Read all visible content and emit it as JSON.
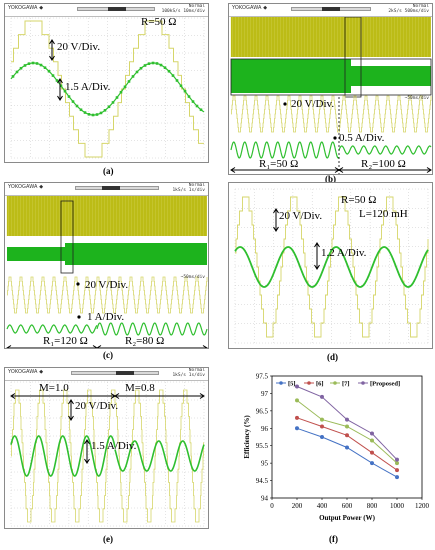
{
  "scope": {
    "brand": "YOKOGAWA ◆",
    "status_normal": "Normal"
  },
  "a": {
    "label": "(a)",
    "status_rate": "100kS/s",
    "status_div": "10ms/div",
    "resistance": "R=50 Ω",
    "v_div": "20 V/Div.",
    "i_div": "1.5 A/Div."
  },
  "b": {
    "label": "(b)",
    "status_rate": "2kS/s",
    "status_div": "500ms/div",
    "v_div": "20 V/Div.",
    "i_div": "0.5 A/Div.",
    "r1": "R₁=50 Ω",
    "r2": "R₂=100 Ω",
    "zoom": "~50ms/div"
  },
  "c": {
    "label": "(c)",
    "status_rate": "1kS/s",
    "status_div": "1s/div",
    "v_div": "20 V/Div.",
    "i_div": "1 A/Div.",
    "r1": "R₁=120 Ω",
    "r2": "R₂=80 Ω",
    "zoom": "~50ms/div"
  },
  "d": {
    "label": "(d)",
    "resistance": "R=50 Ω",
    "inductance": "L=120 mH",
    "v_div": "20 V/Div.",
    "i_div": "1.2 A/Div."
  },
  "e": {
    "label": "(e)",
    "status_rate": "1kS/s",
    "status_div": "1s/div",
    "m1": "M=1.0",
    "m2": "M=0.8",
    "v_div": "20 V/Div.",
    "i_div": "1.5 A/Div."
  },
  "f": {
    "label": "(f)"
  },
  "colors": {
    "voltage": "#d6d66a",
    "current": "#2fbf2f",
    "band_voltage": "#b3b300",
    "band_current": "#1db31d"
  },
  "chart_data": {
    "type": "line",
    "xlabel": "Output Power (W)",
    "ylabel": "Efficiency (%)",
    "x": [
      200,
      400,
      600,
      800,
      1000
    ],
    "xlim": [
      0,
      1200
    ],
    "ylim": [
      94,
      97.5
    ],
    "xticks": [
      "0",
      "200",
      "400",
      "600",
      "800",
      "1000",
      "1200"
    ],
    "yticks": [
      "94",
      "94.5",
      "95",
      "95.5",
      "96",
      "96.5",
      "97",
      "97.5"
    ],
    "legend_position": "top",
    "series": [
      {
        "name": "[5]",
        "color": "#4472c4",
        "values": [
          96.0,
          95.75,
          95.45,
          95.0,
          94.6
        ]
      },
      {
        "name": "[6]",
        "color": "#c0504d",
        "values": [
          96.3,
          96.05,
          95.8,
          95.3,
          94.8
        ]
      },
      {
        "name": "[7]",
        "color": "#9bbb59",
        "values": [
          96.8,
          96.25,
          96.05,
          95.65,
          95.0
        ]
      },
      {
        "name": "[Proposed]",
        "color": "#8064a2",
        "values": [
          97.2,
          96.9,
          96.25,
          95.85,
          95.1
        ]
      }
    ]
  }
}
